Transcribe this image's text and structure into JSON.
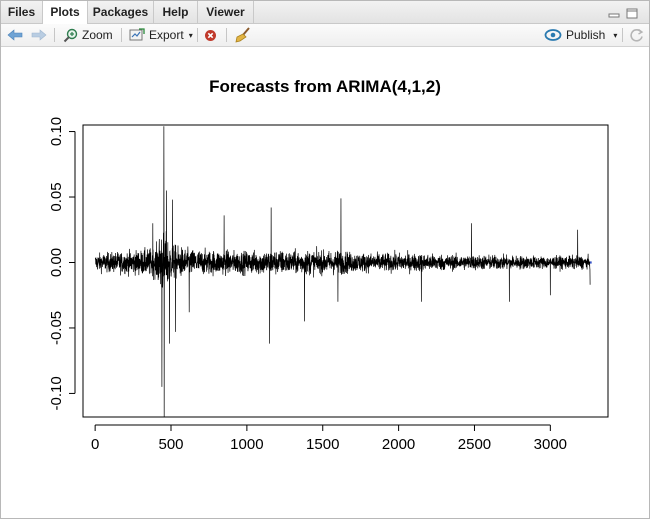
{
  "tabs": [
    {
      "label": "Files",
      "active": false
    },
    {
      "label": "Plots",
      "active": true
    },
    {
      "label": "Packages",
      "active": false
    },
    {
      "label": "Help",
      "active": false
    },
    {
      "label": "Viewer",
      "active": false
    }
  ],
  "toolbar": {
    "zoom_label": "Zoom",
    "export_label": "Export",
    "publish_label": "Publish",
    "icons": [
      "back-arrow-icon",
      "forward-arrow-icon",
      "zoom-icon",
      "export-icon",
      "remove-plot-icon",
      "broom-icon",
      "publish-icon",
      "refresh-icon"
    ]
  },
  "colors": {
    "accent": "#2a7ab0",
    "series": "#000000",
    "forecast": "#1f3fbf",
    "remove": "#c0392b"
  },
  "chart_data": {
    "type": "line",
    "title": "Forecasts from ARIMA(4,1,2)",
    "xlabel": "",
    "ylabel": "",
    "xlim": [
      -80,
      3380
    ],
    "ylim": [
      -0.118,
      0.105
    ],
    "x_ticks": [
      0,
      500,
      1000,
      1500,
      2000,
      2500,
      3000
    ],
    "x_tick_labels": [
      "0",
      "500",
      "1000",
      "1500",
      "2000",
      "2500",
      "3000"
    ],
    "y_ticks": [
      -0.1,
      -0.05,
      0.0,
      0.05,
      0.1
    ],
    "y_tick_labels": [
      "-0.10",
      "-0.05",
      "0.00",
      "0.05",
      "0.10"
    ],
    "grid": false,
    "series": [
      {
        "kind": "observed",
        "x_range": [
          1,
          3262
        ],
        "envelope_x": [
          0,
          100,
          200,
          300,
          400,
          440,
          460,
          500,
          600,
          700,
          800,
          900,
          1000,
          1100,
          1200,
          1300,
          1400,
          1500,
          1600,
          1700,
          1800,
          1900,
          2000,
          2200,
          2400,
          2600,
          2800,
          3000,
          3200,
          3262
        ],
        "envelope_amplitude": [
          0.014,
          0.016,
          0.018,
          0.02,
          0.024,
          0.06,
          0.05,
          0.03,
          0.022,
          0.02,
          0.02,
          0.019,
          0.018,
          0.02,
          0.02,
          0.018,
          0.02,
          0.018,
          0.02,
          0.016,
          0.015,
          0.015,
          0.015,
          0.014,
          0.012,
          0.012,
          0.011,
          0.01,
          0.011,
          0.01
        ],
        "spikes": [
          {
            "x": 440,
            "y": -0.095
          },
          {
            "x": 453,
            "y": 0.104
          },
          {
            "x": 455,
            "y": -0.118
          },
          {
            "x": 470,
            "y": 0.055
          },
          {
            "x": 490,
            "y": -0.062
          },
          {
            "x": 510,
            "y": 0.048
          },
          {
            "x": 530,
            "y": -0.053
          },
          {
            "x": 380,
            "y": 0.03
          },
          {
            "x": 620,
            "y": -0.038
          },
          {
            "x": 850,
            "y": 0.036
          },
          {
            "x": 1150,
            "y": -0.062
          },
          {
            "x": 1160,
            "y": 0.042
          },
          {
            "x": 1380,
            "y": -0.045
          },
          {
            "x": 1620,
            "y": 0.049
          },
          {
            "x": 1600,
            "y": -0.03
          },
          {
            "x": 2150,
            "y": -0.03
          },
          {
            "x": 2480,
            "y": 0.03
          },
          {
            "x": 2730,
            "y": -0.03
          },
          {
            "x": 3000,
            "y": -0.025
          },
          {
            "x": 3180,
            "y": 0.025
          },
          {
            "x": 3262,
            "y": -0.017
          }
        ]
      },
      {
        "kind": "forecast",
        "x": [
          3262,
          3272
        ],
        "y": [
          0.0,
          0.0
        ]
      }
    ]
  }
}
